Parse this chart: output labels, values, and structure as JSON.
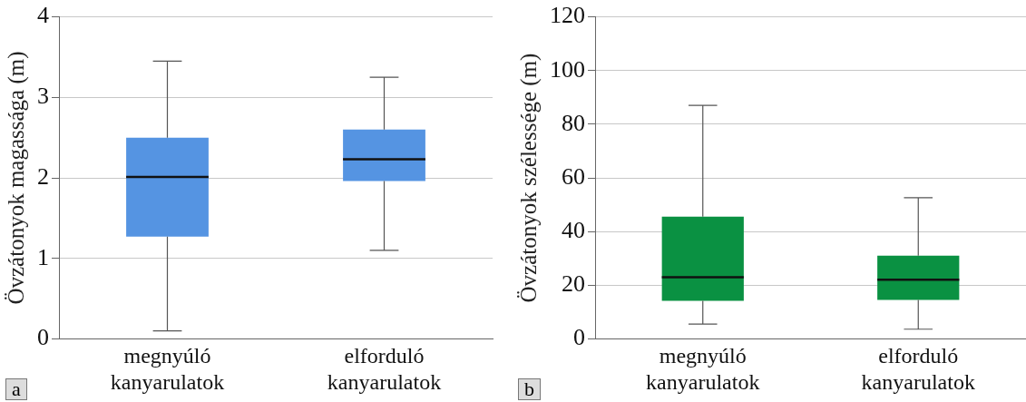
{
  "chart_data": [
    {
      "type": "box",
      "ylabel": "Övzátonyok magassága (m)",
      "categories": [
        "megnyúló kanyarulatok",
        "elforduló kanyarulatok"
      ],
      "color": "#5594e2",
      "boxes": [
        {
          "low": 0.1,
          "q1": 1.27,
          "median": 2.01,
          "q3": 2.5,
          "high": 3.45
        },
        {
          "low": 1.1,
          "q1": 1.96,
          "median": 2.23,
          "q3": 2.6,
          "high": 3.25
        }
      ],
      "ylim": [
        0,
        4
      ],
      "yticks": [
        0,
        1,
        2,
        3,
        4
      ],
      "grid": "y",
      "legend": false,
      "annotations": [
        "a"
      ]
    },
    {
      "type": "box",
      "ylabel": "Övzátonyok szélessége (m)",
      "categories": [
        "megnyúló kanyarulatok",
        "elforduló kanyarulatok"
      ],
      "color": "#0a9142",
      "boxes": [
        {
          "low": 5.5,
          "q1": 14.2,
          "median": 23,
          "q3": 45.5,
          "high": 87
        },
        {
          "low": 3.6,
          "q1": 14.5,
          "median": 22,
          "q3": 31,
          "high": 52.6
        }
      ],
      "ylim": [
        0,
        120
      ],
      "yticks": [
        0,
        20,
        40,
        60,
        80,
        100,
        120
      ],
      "grid": "y",
      "legend": false,
      "annotations": [
        "b"
      ]
    }
  ]
}
